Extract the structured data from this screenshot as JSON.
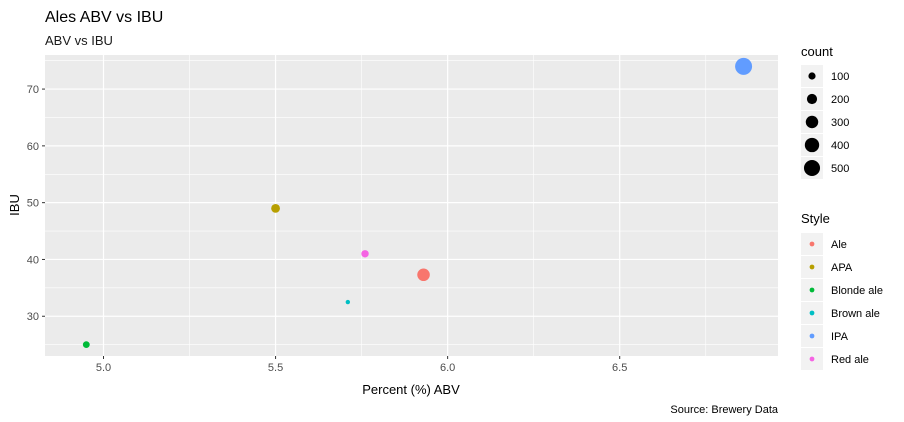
{
  "chart_data": {
    "type": "scatter",
    "title": "Ales ABV vs IBU",
    "subtitle": "ABV vs IBU",
    "xlabel": "Percent (%) ABV",
    "ylabel": "IBU",
    "caption": "Source: Brewery Data",
    "xlim": [
      4.83,
      6.96
    ],
    "ylim": [
      23.0,
      76.0
    ],
    "x_ticks": [
      5.0,
      5.5,
      6.0,
      6.5
    ],
    "x_tick_labels": [
      "5.0",
      "5.5",
      "6.0",
      "6.5"
    ],
    "y_ticks": [
      30,
      40,
      50,
      60,
      70
    ],
    "y_tick_labels": [
      "30",
      "40",
      "50",
      "60",
      "70"
    ],
    "grid": true,
    "points": [
      {
        "style": "Ale",
        "x": 5.93,
        "y": 37.3,
        "count": 305
      },
      {
        "style": "APA",
        "x": 5.5,
        "y": 49.0,
        "count": 150
      },
      {
        "style": "Blonde ale",
        "x": 4.95,
        "y": 25.0,
        "count": 90
      },
      {
        "style": "Brown ale",
        "x": 5.71,
        "y": 32.5,
        "count": 20
      },
      {
        "style": "IPA",
        "x": 6.86,
        "y": 74.0,
        "count": 560
      },
      {
        "style": "Red ale",
        "x": 5.76,
        "y": 41.0,
        "count": 105
      }
    ],
    "size_legend": {
      "title": "count",
      "values": [
        100,
        200,
        300,
        400,
        500
      ],
      "labels": [
        "100",
        "200",
        "300",
        "400",
        "500"
      ],
      "max_count": 560
    },
    "color_legend": {
      "title": "Style",
      "entries": [
        {
          "label": "Ale",
          "color": "#F8766D"
        },
        {
          "label": "APA",
          "color": "#B79F00"
        },
        {
          "label": "Blonde ale",
          "color": "#00BA38"
        },
        {
          "label": "Brown ale",
          "color": "#00BFC4"
        },
        {
          "label": "IPA",
          "color": "#619CFF"
        },
        {
          "label": "Red ale",
          "color": "#F564E3"
        }
      ]
    },
    "colors": {
      "panel": "#EBEBEB",
      "grid_major": "#FFFFFF",
      "legend_key_bg": "#F2F2F2"
    }
  }
}
